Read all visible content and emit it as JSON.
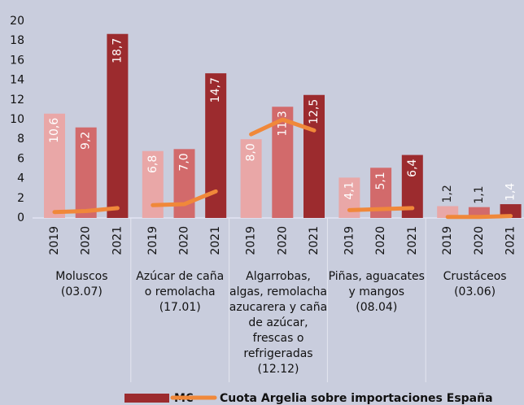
{
  "chart_data": {
    "type": "bar",
    "categories": [
      [
        "Moluscos",
        "(03.07)"
      ],
      [
        "Azúcar de caña",
        "o remolacha",
        "(17.01)"
      ],
      [
        "Algarrobas,",
        "algas, remolacha",
        "azucarera y caña",
        "de azúcar,",
        "frescas o",
        "refrigeradas",
        "(12.12)"
      ],
      [
        "Piñas, aguacates",
        "y mangos",
        "(08.04)"
      ],
      [
        "Crustáceos",
        "(03.06)"
      ]
    ],
    "years": [
      "2019",
      "2020",
      "2021"
    ],
    "year_colors": [
      "#e9a7a7",
      "#d26a6b",
      "#9c2b2e"
    ],
    "bars": {
      "name": "M€",
      "color": "#9c2b2e",
      "values": [
        [
          10.6,
          9.2,
          18.7
        ],
        [
          6.8,
          7.0,
          14.7
        ],
        [
          8.0,
          11.3,
          12.5
        ],
        [
          4.1,
          5.1,
          6.4
        ],
        [
          1.2,
          1.1,
          1.4
        ]
      ],
      "value_labels": [
        [
          "10,6",
          "9,2",
          "18,7"
        ],
        [
          "6,8",
          "7,0",
          "14,7"
        ],
        [
          "8,0",
          "11,3",
          "12,5"
        ],
        [
          "4,1",
          "5,1",
          "6,4"
        ],
        [
          "1,2",
          "1,1",
          "1,4"
        ]
      ]
    },
    "line": {
      "name": "Cuota Argelia sobre importaciones España",
      "color": "#f0883a",
      "values": [
        [
          0.6,
          0.7,
          1.0
        ],
        [
          1.3,
          1.4,
          2.7
        ],
        [
          8.5,
          10.0,
          8.9
        ],
        [
          0.8,
          0.9,
          1.0
        ],
        [
          0.1,
          0.1,
          0.2
        ]
      ]
    },
    "ylim": [
      0,
      20
    ],
    "yticks": [
      0,
      2,
      4,
      6,
      8,
      10,
      12,
      14,
      16,
      18,
      20
    ]
  }
}
